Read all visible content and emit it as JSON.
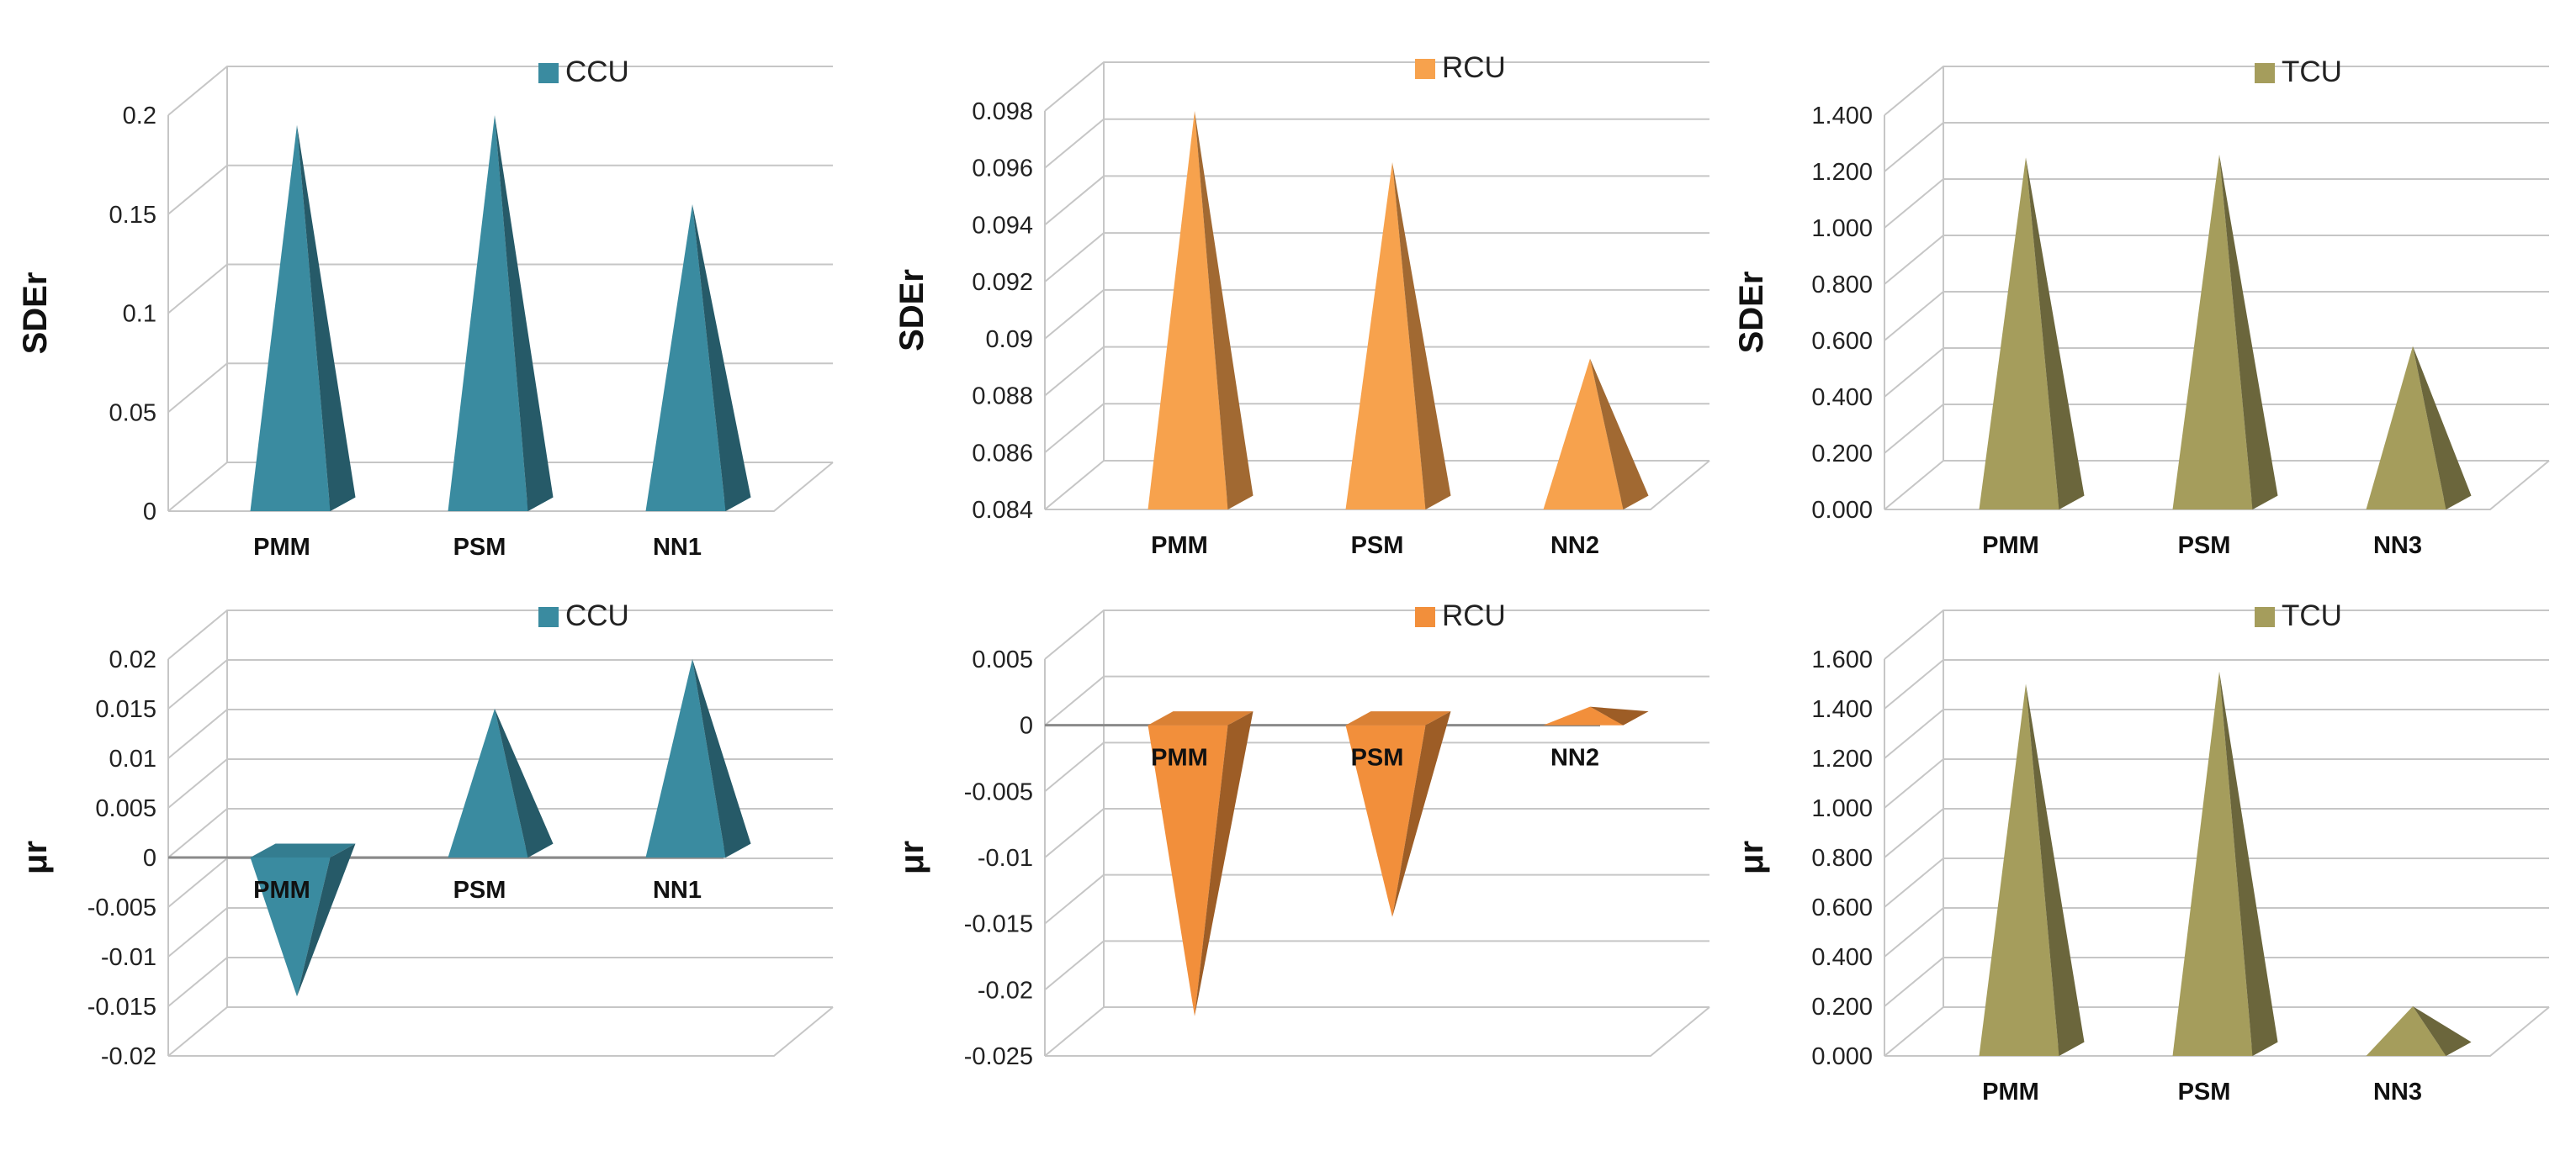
{
  "chart_data": [
    {
      "type": "bar",
      "mark": "pyramid-3d",
      "ylabel": "SDEr",
      "categories": [
        "PMM",
        "PSM",
        "NN1"
      ],
      "series": [
        {
          "name": "CCU",
          "values": [
            0.195,
            0.2,
            0.155
          ]
        }
      ],
      "ylim": [
        0,
        0.2
      ],
      "ticks": [
        0,
        0.05,
        0.1,
        0.15,
        0.2
      ],
      "tick_labels": [
        "0",
        "0.05",
        "0.1",
        "0.15",
        "0.2"
      ],
      "legend": "top-center",
      "grid": true,
      "color": "#3a8ba0"
    },
    {
      "type": "bar",
      "mark": "pyramid-3d",
      "ylabel": "SDEr",
      "categories": [
        "PMM",
        "PSM",
        "NN2"
      ],
      "series": [
        {
          "name": "RCU",
          "values": [
            0.098,
            0.0962,
            0.0893
          ]
        }
      ],
      "ylim": [
        0.084,
        0.098
      ],
      "ticks": [
        0.084,
        0.086,
        0.088,
        0.09,
        0.092,
        0.094,
        0.096,
        0.098
      ],
      "tick_labels": [
        "0.084",
        "0.086",
        "0.088",
        "0.09",
        "0.092",
        "0.094",
        "0.096",
        "0.098"
      ],
      "legend": "top-center",
      "grid": true,
      "color": "#f7a24d"
    },
    {
      "type": "bar",
      "mark": "pyramid-3d",
      "ylabel": "SDEr",
      "categories": [
        "PMM",
        "PSM",
        "NN3"
      ],
      "series": [
        {
          "name": "TCU",
          "values": [
            1.25,
            1.26,
            0.58
          ]
        }
      ],
      "ylim": [
        0,
        1.4
      ],
      "ticks": [
        0,
        0.2,
        0.4,
        0.6,
        0.8,
        1.0,
        1.2,
        1.4
      ],
      "tick_labels": [
        "0.000",
        "0.200",
        "0.400",
        "0.600",
        "0.800",
        "1.000",
        "1.200",
        "1.400"
      ],
      "legend": "top-center",
      "grid": true,
      "color": "#a59d5c"
    },
    {
      "type": "bar",
      "mark": "pyramid-3d",
      "ylabel": "μr",
      "categories": [
        "PMM",
        "PSM",
        "NN1"
      ],
      "series": [
        {
          "name": "CCU",
          "values": [
            -0.014,
            0.015,
            0.02
          ]
        }
      ],
      "ylim": [
        -0.02,
        0.02
      ],
      "ticks": [
        -0.02,
        -0.015,
        -0.01,
        -0.005,
        0,
        0.005,
        0.01,
        0.015,
        0.02
      ],
      "tick_labels": [
        "-0.02",
        "-0.015",
        "-0.01",
        "-0.005",
        "0",
        "0.005",
        "0.01",
        "0.015",
        "0.02"
      ],
      "legend": "top-center",
      "grid": true,
      "color": "#3a8ba0"
    },
    {
      "type": "bar",
      "mark": "pyramid-3d",
      "ylabel": "μr",
      "categories": [
        "PMM",
        "PSM",
        "NN2"
      ],
      "series": [
        {
          "name": "RCU",
          "values": [
            -0.022,
            -0.0145,
            0.0014
          ]
        }
      ],
      "ylim": [
        -0.025,
        0.005
      ],
      "ticks": [
        -0.025,
        -0.02,
        -0.015,
        -0.01,
        -0.005,
        0,
        0.005
      ],
      "tick_labels": [
        "-0.025",
        "-0.02",
        "-0.015",
        "-0.01",
        "-0.005",
        "0",
        "0.005"
      ],
      "legend": "top-center",
      "grid": true,
      "color": "#f28f3b"
    },
    {
      "type": "bar",
      "mark": "pyramid-3d",
      "ylabel": "μr",
      "categories": [
        "PMM",
        "PSM",
        "NN3"
      ],
      "series": [
        {
          "name": "TCU",
          "values": [
            1.5,
            1.55,
            0.2
          ]
        }
      ],
      "ylim": [
        0,
        1.6
      ],
      "ticks": [
        0,
        0.2,
        0.4,
        0.6,
        0.8,
        1.0,
        1.2,
        1.4,
        1.6
      ],
      "tick_labels": [
        "0.000",
        "0.200",
        "0.400",
        "0.600",
        "0.800",
        "1.000",
        "1.200",
        "1.400",
        "1.600"
      ],
      "legend": "top-center",
      "grid": true,
      "color": "#a59d5c"
    }
  ]
}
